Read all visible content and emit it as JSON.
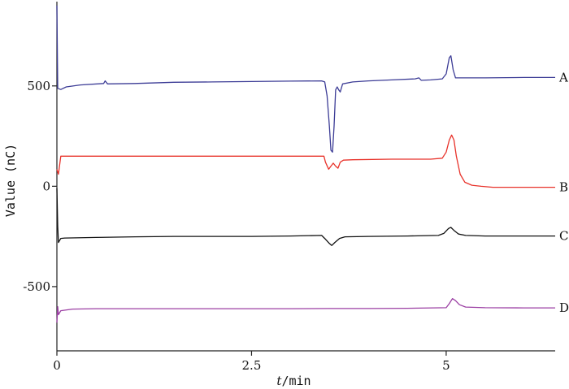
{
  "chart_data": {
    "type": "line",
    "title": "",
    "xlabel_italic": "t",
    "xlabel_rest": "/min",
    "ylabel": "Value (nC)",
    "xlim": [
      0,
      6.4
    ],
    "ylim": [
      -820,
      920
    ],
    "x_ticks": [
      {
        "value": 0,
        "label": "0"
      },
      {
        "value": 2.5,
        "label": "2.5"
      },
      {
        "value": 5,
        "label": "5"
      }
    ],
    "y_ticks": [
      {
        "value": 500,
        "label": "500"
      },
      {
        "value": 0,
        "label": "0"
      },
      {
        "value": -500,
        "label": "-500"
      }
    ],
    "grid": false,
    "series": [
      {
        "name": "A",
        "color": "#3c3c96",
        "points": [
          [
            0,
            900
          ],
          [
            0.01,
            488
          ],
          [
            0.05,
            482
          ],
          [
            0.12,
            495
          ],
          [
            0.3,
            505
          ],
          [
            0.6,
            512
          ],
          [
            0.62,
            525
          ],
          [
            0.65,
            510
          ],
          [
            1.0,
            512
          ],
          [
            1.5,
            518
          ],
          [
            2.0,
            520
          ],
          [
            2.5,
            522
          ],
          [
            3.0,
            524
          ],
          [
            3.4,
            525
          ],
          [
            3.44,
            520
          ],
          [
            3.47,
            450
          ],
          [
            3.5,
            300
          ],
          [
            3.52,
            180
          ],
          [
            3.54,
            170
          ],
          [
            3.56,
            300
          ],
          [
            3.58,
            480
          ],
          [
            3.6,
            495
          ],
          [
            3.62,
            480
          ],
          [
            3.64,
            470
          ],
          [
            3.67,
            510
          ],
          [
            3.8,
            520
          ],
          [
            4.0,
            525
          ],
          [
            4.3,
            530
          ],
          [
            4.6,
            535
          ],
          [
            4.65,
            540
          ],
          [
            4.68,
            528
          ],
          [
            4.8,
            530
          ],
          [
            4.95,
            535
          ],
          [
            5.0,
            560
          ],
          [
            5.04,
            640
          ],
          [
            5.06,
            650
          ],
          [
            5.09,
            580
          ],
          [
            5.12,
            540
          ],
          [
            5.2,
            540
          ],
          [
            5.5,
            540
          ],
          [
            6.0,
            542
          ],
          [
            6.4,
            542
          ]
        ]
      },
      {
        "name": "B",
        "color": "#e8322a",
        "points": [
          [
            0,
            85
          ],
          [
            0.02,
            60
          ],
          [
            0.05,
            150
          ],
          [
            0.5,
            150
          ],
          [
            1.0,
            150
          ],
          [
            1.5,
            150
          ],
          [
            2.0,
            150
          ],
          [
            2.5,
            150
          ],
          [
            3.0,
            150
          ],
          [
            3.43,
            150
          ],
          [
            3.45,
            120
          ],
          [
            3.49,
            85
          ],
          [
            3.52,
            100
          ],
          [
            3.55,
            115
          ],
          [
            3.58,
            100
          ],
          [
            3.61,
            90
          ],
          [
            3.64,
            120
          ],
          [
            3.68,
            130
          ],
          [
            3.8,
            132
          ],
          [
            4.3,
            135
          ],
          [
            4.8,
            135
          ],
          [
            4.95,
            140
          ],
          [
            5.0,
            170
          ],
          [
            5.04,
            230
          ],
          [
            5.07,
            255
          ],
          [
            5.1,
            230
          ],
          [
            5.13,
            150
          ],
          [
            5.18,
            60
          ],
          [
            5.24,
            20
          ],
          [
            5.33,
            5
          ],
          [
            5.45,
            0
          ],
          [
            5.6,
            -5
          ],
          [
            6.0,
            -5
          ],
          [
            6.4,
            -5
          ]
        ]
      },
      {
        "name": "C",
        "color": "#111111",
        "points": [
          [
            0,
            -10
          ],
          [
            0.01,
            -200
          ],
          [
            0.02,
            -280
          ],
          [
            0.05,
            -260
          ],
          [
            0.1,
            -258
          ],
          [
            0.5,
            -255
          ],
          [
            1.0,
            -252
          ],
          [
            1.5,
            -250
          ],
          [
            2.0,
            -250
          ],
          [
            2.5,
            -250
          ],
          [
            3.0,
            -248
          ],
          [
            3.4,
            -245
          ],
          [
            3.44,
            -260
          ],
          [
            3.5,
            -285
          ],
          [
            3.53,
            -295
          ],
          [
            3.57,
            -280
          ],
          [
            3.63,
            -260
          ],
          [
            3.7,
            -252
          ],
          [
            4.0,
            -250
          ],
          [
            4.5,
            -248
          ],
          [
            4.9,
            -245
          ],
          [
            4.97,
            -235
          ],
          [
            5.03,
            -210
          ],
          [
            5.06,
            -205
          ],
          [
            5.1,
            -220
          ],
          [
            5.16,
            -238
          ],
          [
            5.25,
            -245
          ],
          [
            5.5,
            -248
          ],
          [
            6.0,
            -248
          ],
          [
            6.4,
            -248
          ]
        ]
      },
      {
        "name": "D",
        "color": "#9b3fa3",
        "points": [
          [
            0,
            -680
          ],
          [
            0.01,
            -600
          ],
          [
            0.02,
            -640
          ],
          [
            0.05,
            -620
          ],
          [
            0.2,
            -612
          ],
          [
            0.5,
            -610
          ],
          [
            1.0,
            -610
          ],
          [
            1.5,
            -610
          ],
          [
            2.0,
            -610
          ],
          [
            2.5,
            -610
          ],
          [
            3.0,
            -610
          ],
          [
            3.5,
            -609
          ],
          [
            4.0,
            -609
          ],
          [
            4.5,
            -608
          ],
          [
            5.0,
            -605
          ],
          [
            5.04,
            -585
          ],
          [
            5.08,
            -560
          ],
          [
            5.12,
            -570
          ],
          [
            5.17,
            -590
          ],
          [
            5.25,
            -602
          ],
          [
            5.5,
            -605
          ],
          [
            6.0,
            -606
          ],
          [
            6.4,
            -606
          ]
        ]
      }
    ]
  }
}
